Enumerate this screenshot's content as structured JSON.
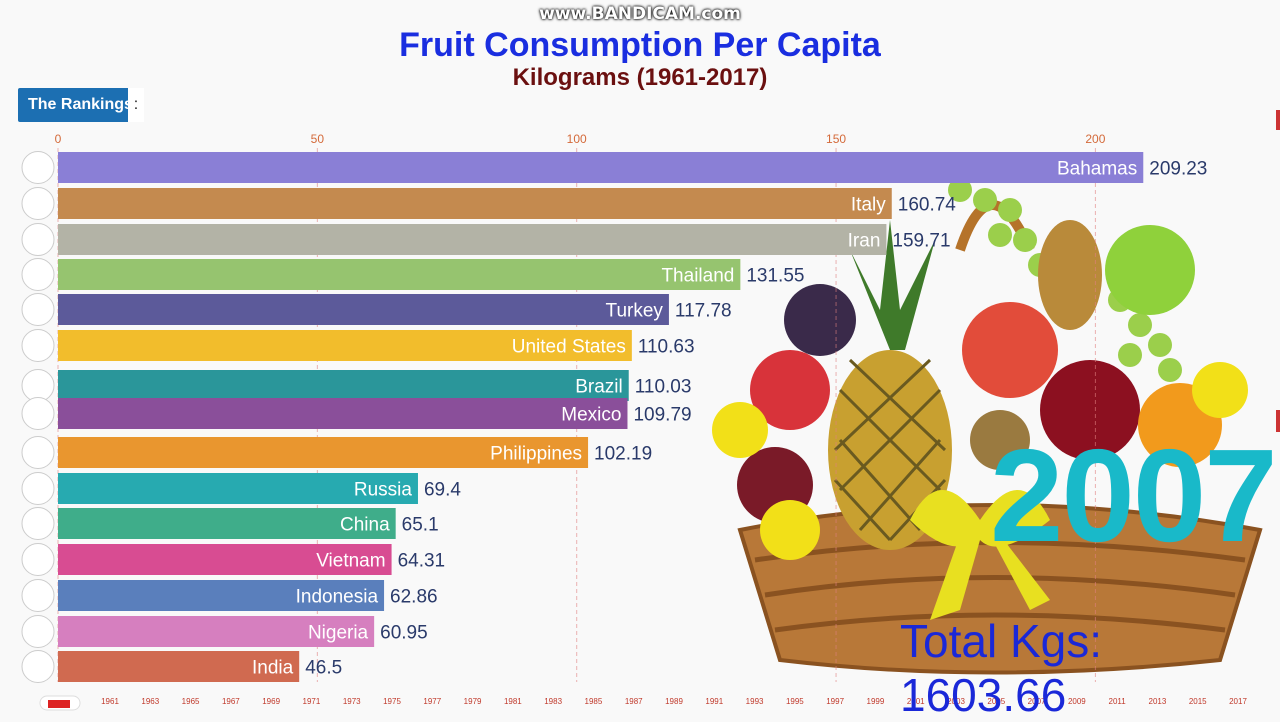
{
  "watermark": "www.BANDICAM.com",
  "header": {
    "title": "Fruit Consumption Per Capita",
    "subtitle": "Kilograms (1961-2017)"
  },
  "rankings_badge": {
    "label": "The Rankings",
    "suffix": ":"
  },
  "current_year": "2007",
  "total_label": "Total Kgs: 1603.66",
  "colors": {
    "title": "#1a2ee0",
    "subtitle": "#6b1010",
    "year": "#19b9c9",
    "total": "#1a28d8",
    "badge": "#1c6fb2"
  },
  "chart_data": {
    "type": "bar",
    "orientation": "horizontal",
    "title": "Fruit Consumption Per Capita",
    "subtitle": "Kilograms (1961-2017)",
    "xlim": [
      0,
      220
    ],
    "x_ticks": [
      0,
      50,
      100,
      150,
      200
    ],
    "grid": true,
    "categories": [
      "Bahamas",
      "Italy",
      "Iran",
      "Thailand",
      "Turkey",
      "United States",
      "Brazil",
      "Mexico",
      "Philippines",
      "Russia",
      "China",
      "Vietnam",
      "Indonesia",
      "Nigeria",
      "India"
    ],
    "values": [
      209.23,
      160.74,
      159.71,
      131.55,
      117.78,
      110.63,
      110.03,
      109.79,
      102.19,
      69.4,
      65.1,
      64.31,
      62.86,
      60.95,
      46.5
    ],
    "bar_colors": [
      "#8a7fd6",
      "#c48a4f",
      "#b3b3a6",
      "#96c46f",
      "#5c5a9a",
      "#f2bd2c",
      "#2a969a",
      "#8a4f9a",
      "#e9962f",
      "#27aab0",
      "#3fad8a",
      "#d84c92",
      "#5a7fbc",
      "#d67fbf",
      "#d06a50"
    ],
    "flags": [
      "flag-bahamas-icon",
      "flag-italy-icon",
      "flag-iran-icon",
      "flag-thailand-icon",
      "flag-turkey-icon",
      "flag-united-states-icon",
      "flag-brazil-icon",
      "flag-mexico-icon",
      "flag-philippines-icon",
      "flag-russia-icon",
      "flag-china-icon",
      "flag-vietnam-icon",
      "flag-indonesia-icon",
      "flag-nigeria-icon",
      "flag-india-icon"
    ],
    "timeline_years": [
      "1961",
      "1963",
      "1965",
      "1967",
      "1969",
      "1971",
      "1973",
      "1975",
      "1977",
      "1979",
      "1981",
      "1983",
      "1985",
      "1987",
      "1989",
      "1991",
      "1993",
      "1995",
      "1997",
      "1999",
      "2001",
      "2003",
      "2005",
      "2007",
      "2009",
      "2011",
      "2013",
      "2015",
      "2017"
    ]
  }
}
